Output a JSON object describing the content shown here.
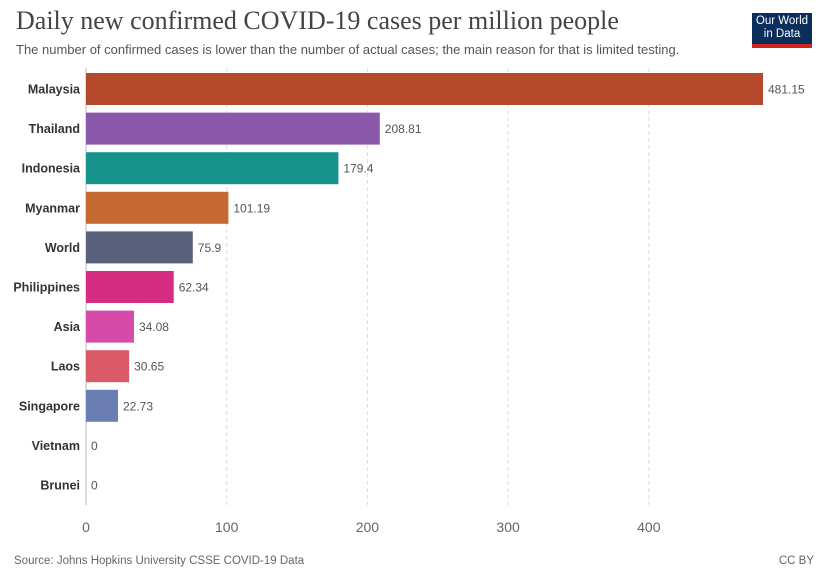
{
  "header": {
    "title": "Daily new confirmed COVID-19 cases per million people",
    "subtitle": "The number of confirmed cases is lower than the number of actual cases; the main reason for that is limited testing."
  },
  "logo": {
    "line1": "Our World",
    "line2": "in Data"
  },
  "footer": {
    "source": "Source: Johns Hopkins University CSSE COVID-19 Data",
    "license": "CC BY"
  },
  "chart_data": {
    "type": "bar",
    "orientation": "horizontal",
    "title": "Daily new confirmed COVID-19 cases per million people",
    "subtitle": "The number of confirmed cases is lower than the number of actual cases; the main reason for that is limited testing.",
    "categories": [
      "Malaysia",
      "Thailand",
      "Indonesia",
      "Myanmar",
      "World",
      "Philippines",
      "Asia",
      "Laos",
      "Singapore",
      "Vietnam",
      "Brunei"
    ],
    "values": [
      481.15,
      208.81,
      179.4,
      101.19,
      75.9,
      62.34,
      34.08,
      30.65,
      22.73,
      0,
      0
    ],
    "value_labels": [
      "481.15",
      "208.81",
      "179.4",
      "101.19",
      "75.9",
      "62.34",
      "34.08",
      "30.65",
      "22.73",
      "0",
      "0"
    ],
    "colors": [
      "#b5482b",
      "#8a58a8",
      "#17938c",
      "#c4692f",
      "#58607c",
      "#d42c81",
      "#d64aa8",
      "#db5a67",
      "#6a7eb4",
      "#888888",
      "#888888"
    ],
    "xlim": [
      0,
      481.15
    ],
    "xticks": [
      0,
      100,
      200,
      300,
      400
    ],
    "grid": true,
    "source": "Source: Johns Hopkins University CSSE COVID-19 Data"
  }
}
